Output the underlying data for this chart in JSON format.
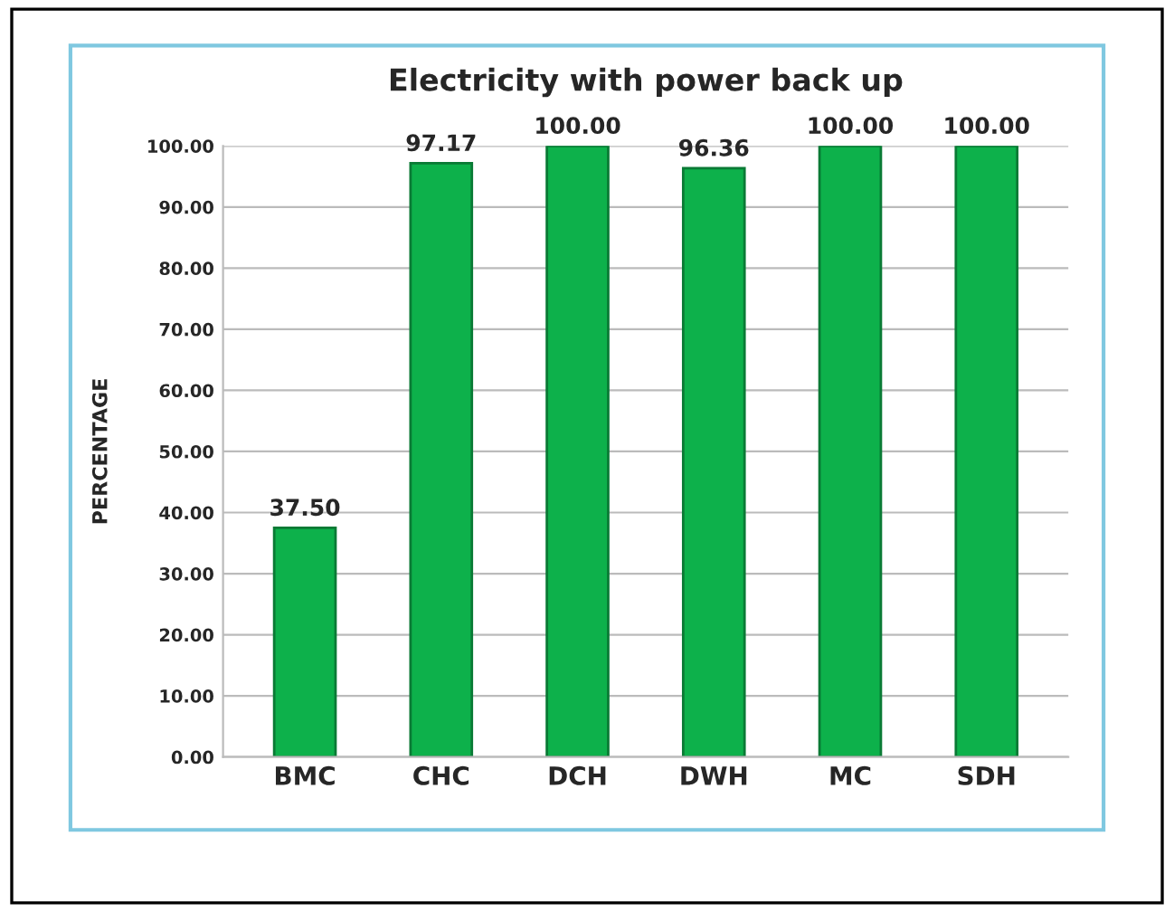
{
  "chart_data": {
    "type": "bar",
    "title": "Electricity with power back up",
    "ylabel": "PERCENTAGE",
    "categories": [
      "BMC",
      "CHC",
      "DCH",
      "DWH",
      "MC",
      "SDH"
    ],
    "values": [
      37.5,
      97.17,
      100,
      96.36,
      100,
      100
    ],
    "value_labels": [
      "37.50",
      "97.17",
      "100.00",
      "96.36",
      "100.00",
      "100.00"
    ],
    "color": "#0db14b",
    "ylim": [
      0,
      100
    ],
    "yticks": [
      {
        "value": 0,
        "label": "0.00"
      },
      {
        "value": 10,
        "label": "10.00"
      },
      {
        "value": 20,
        "label": "20.00"
      },
      {
        "value": 30,
        "label": "30.00"
      },
      {
        "value": 40,
        "label": "40.00"
      },
      {
        "value": 50,
        "label": "50.00"
      },
      {
        "value": 60,
        "label": "60.00"
      },
      {
        "value": 70,
        "label": "70.00"
      },
      {
        "value": 80,
        "label": "80.00"
      },
      {
        "value": 90,
        "label": "90.00"
      },
      {
        "value": 100,
        "label": "100.00"
      }
    ],
    "grid": "y",
    "legend": false
  }
}
